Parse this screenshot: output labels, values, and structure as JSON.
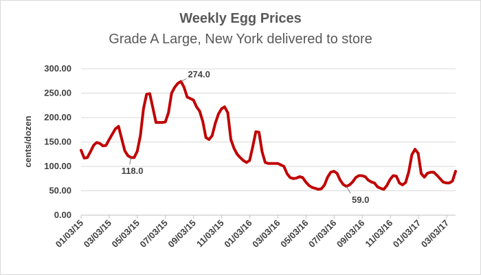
{
  "chart_data": {
    "type": "line",
    "title": "Weekly Egg Prices",
    "subtitle": "Grade A Large, New York delivered to store",
    "ylabel": "cents/dozen",
    "xlabel": "",
    "ylim": [
      0,
      300
    ],
    "y_ticks": [
      "0.00",
      "50.00",
      "100.00",
      "150.00",
      "200.00",
      "250.00",
      "300.00"
    ],
    "x_ticks": [
      "01/03/15",
      "03/03/15",
      "05/03/15",
      "07/03/15",
      "09/03/15",
      "11/03/15",
      "01/03/16",
      "03/03/16",
      "05/03/16",
      "07/03/16",
      "09/03/16",
      "11/03/16",
      "01/03/17",
      "03/03/17"
    ],
    "grid": "horizontal",
    "series_color": "#c00000",
    "series": [
      {
        "values": [
          133,
          117,
          118,
          130,
          143,
          149,
          147,
          142,
          143,
          155,
          166,
          177,
          182,
          157,
          132,
          122,
          118,
          118,
          131,
          163,
          218,
          248,
          249,
          220,
          190,
          190,
          190,
          191,
          210,
          250,
          262,
          270,
          274,
          262,
          242,
          239,
          236,
          222,
          213,
          192,
          159,
          155,
          163,
          188,
          207,
          218,
          222,
          210,
          155,
          137,
          125,
          118,
          112,
          108,
          112,
          140,
          171,
          170,
          130,
          108,
          106,
          106,
          106,
          106,
          103,
          100,
          85,
          77,
          75,
          76,
          79,
          77,
          68,
          61,
          57,
          55,
          53,
          54,
          62,
          78,
          88,
          90,
          86,
          72,
          63,
          59,
          62,
          68,
          77,
          81,
          81,
          79,
          72,
          68,
          66,
          58,
          55,
          53,
          61,
          73,
          81,
          80,
          66,
          62,
          67,
          89,
          124,
          135,
          127,
          85,
          78,
          86,
          88,
          88,
          82,
          75,
          68,
          66,
          66,
          70,
          90
        ]
      }
    ],
    "annotations": [
      {
        "label": "274.0",
        "index": 32,
        "value": 274
      },
      {
        "label": "118.0",
        "index": 16,
        "value": 118
      },
      {
        "label": "59.0",
        "index": 85,
        "value": 59
      }
    ]
  }
}
